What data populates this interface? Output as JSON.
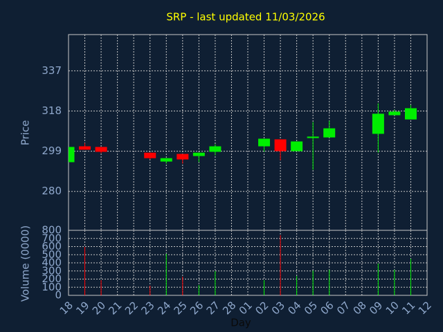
{
  "chart_data": {
    "type": "candlestick",
    "title": "SRP - last updated 11/03/2026",
    "ylabel": "Price",
    "y2label": "Volume (0000)",
    "xlabel": "Day",
    "categories": [
      "18",
      "19",
      "20",
      "21",
      "22",
      "23",
      "24",
      "25",
      "26",
      "27",
      "28",
      "01",
      "02",
      "03",
      "04",
      "05",
      "06",
      "07",
      "08",
      "09",
      "10",
      "11",
      "12"
    ],
    "open": [
      293.8,
      301.3,
      301.0,
      null,
      null,
      298.3,
      294.1,
      297.7,
      296.7,
      298.7,
      null,
      null,
      301.3,
      304.6,
      299.0,
      305.2,
      305.5,
      null,
      null,
      307.2,
      316.0,
      314.0,
      null
    ],
    "high": [
      301.0,
      302.9,
      301.0,
      null,
      null,
      298.3,
      295.7,
      297.7,
      298.3,
      302.3,
      null,
      null,
      304.9,
      304.6,
      303.6,
      312.8,
      313.4,
      null,
      null,
      321.6,
      318.6,
      320.9,
      null
    ],
    "low": [
      293.8,
      299.7,
      298.0,
      null,
      null,
      295.1,
      293.1,
      293.1,
      293.8,
      297.0,
      null,
      null,
      298.7,
      294.7,
      299.0,
      290.2,
      305.5,
      null,
      null,
      298.3,
      316.0,
      314.0,
      null
    ],
    "close": [
      301.0,
      299.7,
      298.7,
      null,
      null,
      295.7,
      295.7,
      295.1,
      298.3,
      301.3,
      null,
      null,
      304.9,
      299.0,
      303.6,
      305.9,
      309.8,
      null,
      null,
      316.7,
      317.7,
      319.3,
      null
    ],
    "volume": [
      null,
      596,
      187,
      null,
      null,
      119,
      511,
      230,
      128,
      298,
      null,
      null,
      187,
      740,
      238,
      306,
      315,
      null,
      null,
      391,
      315,
      451,
      null
    ],
    "up_color": "#00ee00",
    "down_color": "#ff0000",
    "ylim": [
      261.6,
      354.1
    ],
    "yticks": [
      280,
      299,
      318,
      337
    ],
    "y2lim": [
      0,
      800
    ],
    "y2ticks": [
      0,
      100,
      200,
      300,
      400,
      500,
      600,
      700,
      800
    ],
    "grid": true
  }
}
